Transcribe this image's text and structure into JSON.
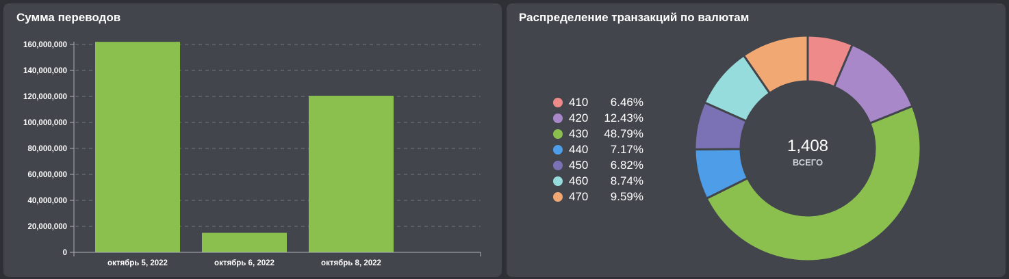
{
  "bar_panel": {
    "title": "Сумма переводов"
  },
  "pie_panel": {
    "title": "Распределение транзакций по валютам",
    "center_value": "1,408",
    "center_label": "ВСЕГО"
  },
  "chart_data": [
    {
      "type": "bar",
      "title": "Сумма переводов",
      "categories": [
        "октябрь 5, 2022",
        "октябрь 6, 2022",
        "октябрь 8, 2022"
      ],
      "values": [
        162000000,
        15000000,
        120500000
      ],
      "yticks": [
        "0",
        "20,000,000",
        "40,000,000",
        "60,000,000",
        "80,000,000",
        "100,000,000",
        "120,000,000",
        "140,000,000",
        "160,000,000"
      ],
      "ylim": [
        0,
        160000000
      ],
      "grid": true,
      "color": "#8bc04f"
    },
    {
      "type": "pie",
      "title": "Распределение транзакций по валютам",
      "total": "1,408",
      "total_label": "ВСЕГО",
      "legend_position": "left",
      "slices": [
        {
          "label": "410",
          "percent": 6.46,
          "percent_text": "6.46%",
          "color": "#ef8a8a"
        },
        {
          "label": "420",
          "percent": 12.43,
          "percent_text": "12.43%",
          "color": "#a988c9"
        },
        {
          "label": "430",
          "percent": 48.79,
          "percent_text": "48.79%",
          "color": "#8bc04f"
        },
        {
          "label": "440",
          "percent": 7.17,
          "percent_text": "7.17%",
          "color": "#4e9de8"
        },
        {
          "label": "450",
          "percent": 6.82,
          "percent_text": "6.82%",
          "color": "#7a72b4"
        },
        {
          "label": "460",
          "percent": 8.74,
          "percent_text": "8.74%",
          "color": "#97dcdc"
        },
        {
          "label": "470",
          "percent": 9.59,
          "percent_text": "9.59%",
          "color": "#f2a872"
        }
      ]
    }
  ]
}
